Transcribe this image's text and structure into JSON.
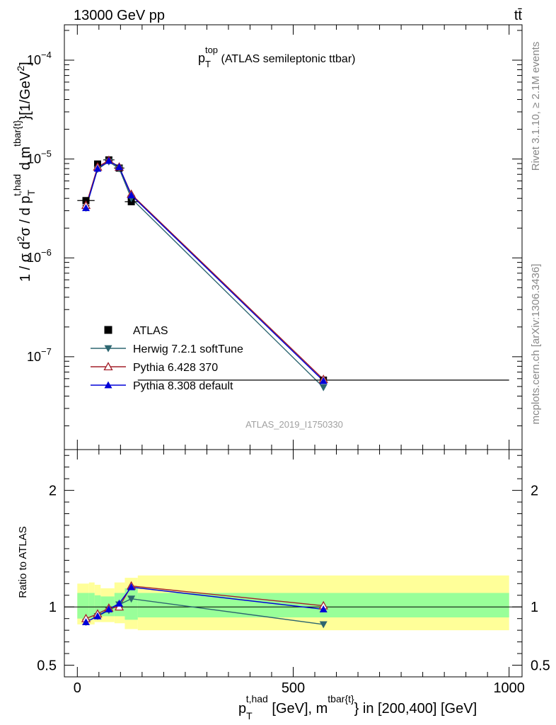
{
  "header": {
    "beam_label": "13000 GeV pp",
    "process_label": "tt̄"
  },
  "side_labels": {
    "rivet": "Rivet 3.1.10, ≥ 2.1M events",
    "mcplots": "mcplots.cern.ch [arXiv:1306.3436]"
  },
  "chart_data": [
    {
      "type": "line",
      "panel": "main",
      "title": {
        "main": "p",
        "sub": "T",
        "sup": "top",
        "rest": " (ATLAS semileptonic ttbar)"
      },
      "analysis_id": "ATLAS_2019_I1750330",
      "ylabel": {
        "t1": "1 / σ d",
        "t1s": "2",
        "t2": "σ / d p",
        "t2b": "T",
        "t2p": "t,had",
        "t3": " d m",
        "t3p": "tbar{t}",
        "t4": "}[1/GeV",
        "t4p": "2",
        "t5": "]"
      },
      "xlim": [
        -30,
        1030
      ],
      "ylim": [
        1.15e-08,
        0.000228
      ],
      "yscale": "log",
      "ytick_labels": [
        {
          "value": 1e-07,
          "base": "10",
          "exp": "−7"
        },
        {
          "value": 1e-06,
          "base": "10",
          "exp": "−6"
        },
        {
          "value": 1e-05,
          "base": "10",
          "exp": "−5"
        },
        {
          "value": 0.0001,
          "base": "10",
          "exp": "−4"
        }
      ],
      "legend_position": "lower-left",
      "series": [
        {
          "name": "ATLAS",
          "color": "#000000",
          "marker": "square",
          "x": [
            20,
            47,
            73,
            97,
            125,
            570
          ],
          "y": [
            3.8e-06,
            8.9e-06,
            9.8e-06,
            8.1e-06,
            3.7e-06,
            5.8e-08
          ],
          "xerr": [
            20,
            7,
            13,
            12,
            15,
            430
          ]
        },
        {
          "name": "Herwig 7.2.1 softTune",
          "color": "#2d6670",
          "marker": "triangle-down",
          "x": [
            20,
            47,
            73,
            97,
            125,
            570
          ],
          "y": [
            3.2e-06,
            7.9e-06,
            9.4e-06,
            8e-06,
            4e-06,
            4.9e-08
          ]
        },
        {
          "name": "Pythia 6.428 370",
          "color": "#a3202a",
          "marker": "triangle-open",
          "x": [
            20,
            47,
            73,
            97,
            125,
            570
          ],
          "y": [
            3.4e-06,
            8.3e-06,
            9.7e-06,
            8.3e-06,
            4.4e-06,
            5.9e-08
          ]
        },
        {
          "name": "Pythia 8.308 default",
          "color": "#0000d8",
          "marker": "triangle-up",
          "x": [
            20,
            47,
            73,
            97,
            125,
            570
          ],
          "y": [
            3.2e-06,
            8e-06,
            9.6e-06,
            8.3e-06,
            4.3e-06,
            5.7e-08
          ]
        }
      ]
    },
    {
      "type": "line",
      "panel": "ratio",
      "ylabel": "Ratio to ATLAS",
      "xlabel": {
        "t1": "p",
        "t1b": "T",
        "t1p": "t,had",
        "t2": " [GeV], m",
        "t2p": "tbar{t}",
        "t3": "} in [200,400] [GeV]"
      },
      "xlim": [
        -30,
        1030
      ],
      "ylim": [
        0.4,
        2.35
      ],
      "ytick_labels": [
        "0.5",
        "1",
        "2"
      ],
      "xtick_labels": [
        "0",
        "500",
        "1000"
      ],
      "reference_line": 1,
      "bands": {
        "inner_color": "#99ff99",
        "outer_color": "#ffff99",
        "bins": [
          {
            "x0": 0,
            "x1": 27,
            "inner": [
              0.9,
              1.12
            ],
            "outer": [
              0.85,
              1.2
            ]
          },
          {
            "x0": 27,
            "x1": 40,
            "inner": [
              0.9,
              1.12
            ],
            "outer": [
              0.85,
              1.21
            ]
          },
          {
            "x0": 40,
            "x1": 54,
            "inner": [
              0.92,
              1.1
            ],
            "outer": [
              0.87,
              1.19
            ]
          },
          {
            "x0": 54,
            "x1": 86,
            "inner": [
              0.92,
              1.09
            ],
            "outer": [
              0.87,
              1.16
            ]
          },
          {
            "x0": 86,
            "x1": 110,
            "inner": [
              0.92,
              1.12
            ],
            "outer": [
              0.86,
              1.21
            ]
          },
          {
            "x0": 110,
            "x1": 140,
            "inner": [
              0.89,
              1.16
            ],
            "outer": [
              0.81,
              1.25
            ]
          },
          {
            "x0": 140,
            "x1": 1000,
            "inner": [
              0.91,
              1.12
            ],
            "outer": [
              0.8,
              1.27
            ]
          }
        ]
      },
      "series": [
        {
          "name": "Herwig 7.2.1 softTune",
          "color": "#2d6670",
          "marker": "triangle-down",
          "x": [
            20,
            47,
            73,
            97,
            125,
            570
          ],
          "y": [
            0.87,
            0.92,
            0.97,
            1.02,
            1.07,
            0.85
          ]
        },
        {
          "name": "Pythia 6.428 370",
          "color": "#a3202a",
          "marker": "triangle-open",
          "x": [
            20,
            47,
            73,
            97,
            125,
            570
          ],
          "y": [
            0.9,
            0.94,
            0.99,
            1.0,
            1.18,
            1.01
          ]
        },
        {
          "name": "Pythia 8.308 default",
          "color": "#0000d8",
          "marker": "triangle-up",
          "x": [
            20,
            47,
            73,
            97,
            125,
            570
          ],
          "y": [
            0.87,
            0.92,
            0.98,
            1.03,
            1.17,
            0.98
          ]
        }
      ]
    }
  ]
}
